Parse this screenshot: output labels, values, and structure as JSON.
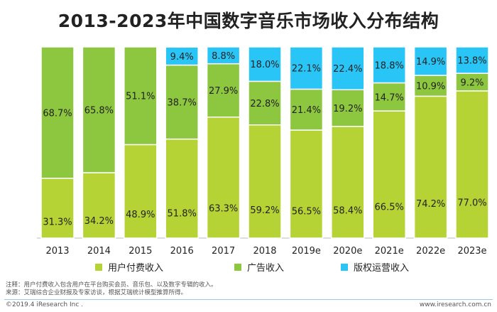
{
  "title": "2013-2023年中国数字音乐市场收入分布结构",
  "chart_data": {
    "type": "bar",
    "stacked": true,
    "percent": true,
    "categories": [
      "2013",
      "2014",
      "2015",
      "2016",
      "2017",
      "2018",
      "2019e",
      "2020e",
      "2021e",
      "2022e",
      "2023e"
    ],
    "series": [
      {
        "name": "用户付费收入",
        "color": "#b5d334",
        "values": [
          31.3,
          34.2,
          48.9,
          51.8,
          63.3,
          59.2,
          56.5,
          58.4,
          66.5,
          74.2,
          77.0
        ]
      },
      {
        "name": "广告收入",
        "color": "#8dc63f",
        "values": [
          68.7,
          65.8,
          51.1,
          38.7,
          27.9,
          22.8,
          21.4,
          19.2,
          14.7,
          10.9,
          9.2
        ]
      },
      {
        "name": "版权运营收入",
        "color": "#29c5f6",
        "values": [
          0,
          0,
          0,
          9.4,
          8.8,
          18.0,
          22.1,
          22.4,
          18.8,
          14.9,
          13.8
        ]
      }
    ],
    "ylim": [
      0,
      100
    ],
    "legend_position": "bottom"
  },
  "notes": [
    "注释：用户付费收入包含用户在平台购买会员、音乐包、以及数字专辑的收入。",
    "来源：艾瑞综合企业财报及专家访谈，根据艾瑞统计模型推算所得。"
  ],
  "copyright": "©2019.4 iResearch Inc .",
  "website": "www.iresearch.com.cn"
}
